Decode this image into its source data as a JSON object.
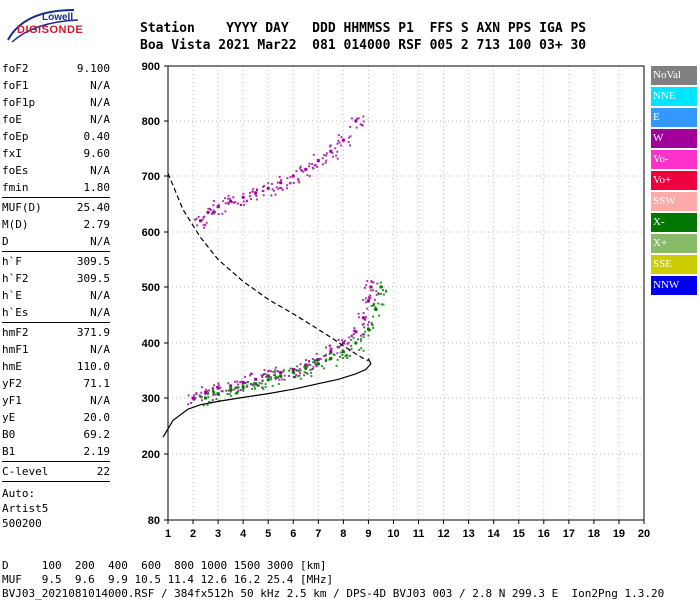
{
  "logo": {
    "line1": "Lowell",
    "line2": "DIGISONDE"
  },
  "header": {
    "line1": "Station    YYYY DAY   DDD HHMMSS P1  FFS S AXN PPS IGA PS",
    "line2": "Boa Vista 2021 Mar22  081 014000 RSF 005 2 713 100 03+ 30"
  },
  "params": {
    "group1": [
      {
        "name": "foF2",
        "value": "9.100"
      },
      {
        "name": "foF1",
        "value": "N/A"
      },
      {
        "name": "foF1p",
        "value": "N/A"
      },
      {
        "name": "foE",
        "value": "N/A"
      },
      {
        "name": "foEp",
        "value": "0.40"
      },
      {
        "name": "fxI",
        "value": "9.60"
      },
      {
        "name": "foEs",
        "value": "N/A"
      },
      {
        "name": "fmin",
        "value": "1.80"
      }
    ],
    "group2": [
      {
        "name": "MUF(D)",
        "value": "25.40"
      },
      {
        "name": "M(D)",
        "value": "2.79"
      },
      {
        "name": "D",
        "value": "N/A"
      }
    ],
    "group3": [
      {
        "name": "h`F",
        "value": "309.5"
      },
      {
        "name": "h`F2",
        "value": "309.5"
      },
      {
        "name": "h`E",
        "value": "N/A"
      },
      {
        "name": "h`Es",
        "value": "N/A"
      }
    ],
    "group4": [
      {
        "name": "hmF2",
        "value": "371.9"
      },
      {
        "name": "hmF1",
        "value": "N/A"
      },
      {
        "name": "hmE",
        "value": "110.0"
      },
      {
        "name": "yF2",
        "value": "71.1"
      },
      {
        "name": "yF1",
        "value": "N/A"
      },
      {
        "name": "yE",
        "value": "20.0"
      },
      {
        "name": "B0",
        "value": "69.2"
      },
      {
        "name": "B1",
        "value": "2.19"
      }
    ],
    "group5": [
      {
        "name": "C-level",
        "value": "22"
      }
    ]
  },
  "auto": {
    "line1": "Auto:",
    "line2": "Artist5",
    "line3": "500200"
  },
  "footer": {
    "line1": "D     100  200  400  600  800 1000 1500 3000 [km]",
    "line2": "MUF   9.5  9.6  9.9 10.5 11.4 12.6 16.2 25.4 [MHz]",
    "line3": "BVJ03_2021081014000.RSF / 384fx512h 50 kHz 2.5 km / DPS-4D BVJ03 003 / 2.8 N 299.3 E  Ion2Png 1.3.20"
  },
  "legend": [
    {
      "label": "NoVal",
      "color": "#808080"
    },
    {
      "label": "NNE",
      "color": "#00e5ff"
    },
    {
      "label": "E",
      "color": "#3399ff"
    },
    {
      "label": "W",
      "color": "#a0009a"
    },
    {
      "label": "Vo-",
      "color": "#ff33cc"
    },
    {
      "label": "Vo+",
      "color": "#ee0040"
    },
    {
      "label": "SSW",
      "color": "#ffaaaa"
    },
    {
      "label": "X-",
      "color": "#007700"
    },
    {
      "label": "X+",
      "color": "#88bb66"
    },
    {
      "label": "SSE",
      "color": "#cccc00"
    },
    {
      "label": "NNW",
      "color": "#0000ee"
    }
  ],
  "chart_data": {
    "type": "scatter",
    "xlabel": "",
    "ylabel": "",
    "xlim": [
      1,
      20
    ],
    "ylim": [
      80,
      900
    ],
    "x_ticks": [
      1,
      2,
      3,
      4,
      5,
      6,
      7,
      8,
      9,
      10,
      11,
      12,
      13,
      14,
      15,
      16,
      17,
      18,
      19,
      20
    ],
    "y_ticks": [
      80,
      200,
      300,
      400,
      500,
      600,
      700,
      800,
      900
    ],
    "grid": true,
    "legend_position": "right",
    "series": [
      {
        "kind": "echo",
        "trace": "F2-O",
        "color": "#a0009a",
        "x": [
          2.0,
          2.5,
          3.0,
          3.5,
          4.0,
          4.5,
          5.0,
          5.5,
          6.0,
          6.5,
          7.0,
          7.5,
          8.0,
          8.5,
          8.8,
          9.0,
          9.1
        ],
        "y": [
          300,
          310,
          318,
          322,
          328,
          334,
          340,
          346,
          352,
          360,
          370,
          385,
          400,
          420,
          445,
          475,
          500
        ]
      },
      {
        "kind": "echo",
        "trace": "F2-X",
        "color": "#007700",
        "x": [
          2.5,
          3.0,
          3.5,
          4.0,
          4.5,
          5.0,
          5.5,
          6.0,
          6.5,
          7.0,
          7.5,
          8.0,
          8.5,
          9.0,
          9.3,
          9.5
        ],
        "y": [
          300,
          308,
          315,
          320,
          326,
          333,
          340,
          347,
          354,
          362,
          372,
          384,
          400,
          425,
          460,
          500
        ]
      },
      {
        "kind": "echo",
        "trace": "2F-O",
        "color": "#a0009a",
        "x": [
          2.3,
          2.6,
          3.0,
          3.5,
          4.0,
          4.5,
          5.0,
          5.5,
          6.0,
          6.5,
          7.0,
          7.5,
          8.0,
          8.5
        ],
        "y": [
          620,
          635,
          645,
          655,
          662,
          670,
          678,
          688,
          700,
          712,
          728,
          745,
          765,
          800
        ]
      },
      {
        "kind": "profile",
        "trace": "true-height",
        "color": "#000000",
        "x": [
          0.8,
          1.2,
          1.8,
          2.3,
          3.0,
          4.0,
          5.0,
          6.0,
          7.0,
          7.8,
          8.5,
          8.9,
          9.1,
          9.0
        ],
        "y": [
          230,
          260,
          280,
          288,
          294,
          301,
          308,
          316,
          326,
          334,
          344,
          352,
          362,
          372
        ]
      },
      {
        "kind": "profile",
        "trace": "model-dashed",
        "color": "#000000",
        "x": [
          1.0,
          1.6,
          2.3,
          3.0,
          4.0,
          5.0,
          6.0,
          6.8,
          7.5,
          8.1,
          8.5,
          8.8,
          9.0
        ],
        "y": [
          705,
          640,
          590,
          550,
          510,
          478,
          452,
          430,
          410,
          392,
          380,
          372,
          368
        ]
      }
    ]
  }
}
